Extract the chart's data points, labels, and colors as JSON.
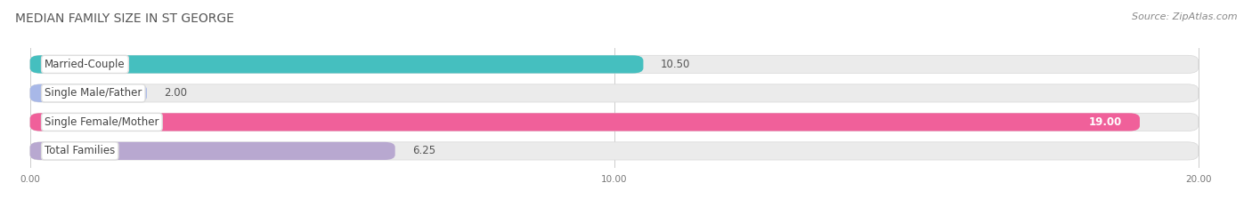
{
  "title": "MEDIAN FAMILY SIZE IN ST GEORGE",
  "source": "Source: ZipAtlas.com",
  "categories": [
    "Married-Couple",
    "Single Male/Father",
    "Single Female/Mother",
    "Total Families"
  ],
  "values": [
    10.5,
    2.0,
    19.0,
    6.25
  ],
  "bar_colors": [
    "#45bfbf",
    "#a8b8e8",
    "#f0609a",
    "#b8a8d0"
  ],
  "bar_bg_color": "#ebebeb",
  "background_color": "#ffffff",
  "xlim_min": 0,
  "xlim_max": 20,
  "xticks": [
    0.0,
    10.0,
    20.0
  ],
  "xtick_labels": [
    "0.00",
    "10.00",
    "20.00"
  ],
  "value_labels": [
    "10.50",
    "2.00",
    "19.00",
    "6.25"
  ],
  "value_inside": [
    false,
    false,
    true,
    false
  ],
  "title_fontsize": 10,
  "source_fontsize": 8,
  "label_fontsize": 8.5,
  "value_fontsize": 8.5,
  "bar_height": 0.62,
  "bar_gap": 0.38
}
